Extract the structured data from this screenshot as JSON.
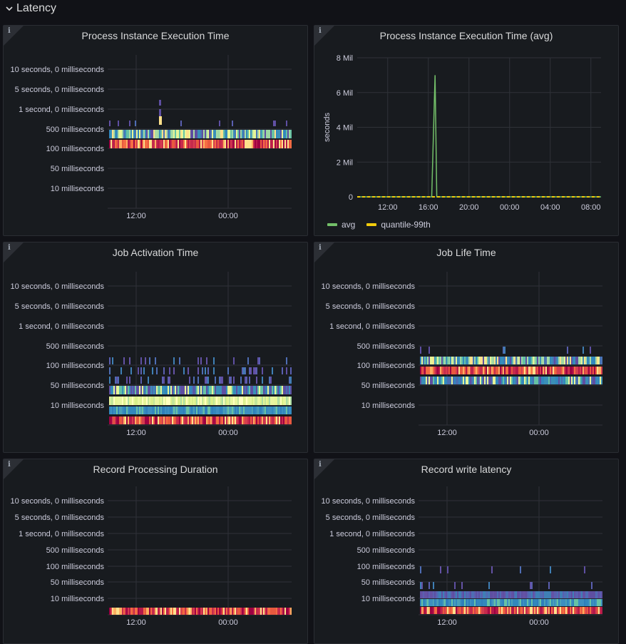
{
  "row": {
    "title": "Latency",
    "icon": "chevron-down-icon"
  },
  "colors": {
    "background": "#111217",
    "panel": "#181b1f",
    "grid": "#2f3238",
    "axis_text": "#ccccdc",
    "avg": "#73bf69",
    "quantile": "#f2cc0c"
  },
  "panels": [
    {
      "id": "process-instance-execution-time",
      "title": "Process Instance Execution Time",
      "info_icon": "i",
      "type": "heatmap",
      "y_labels": [
        "10 seconds, 0 milliseconds",
        "5 seconds, 0 milliseconds",
        "1 second, 0 milliseconds",
        "500 milliseconds",
        "100 milliseconds",
        "50 milliseconds",
        "10 milliseconds"
      ],
      "x_labels": [
        "12:00",
        "00:00"
      ]
    },
    {
      "id": "process-instance-execution-time-avg",
      "title": "Process Instance Execution Time (avg)",
      "info_icon": "i",
      "type": "line",
      "y_axis_label": "seconds",
      "y_labels": [
        "8 Mil",
        "6 Mil",
        "4 Mil",
        "2 Mil",
        "0"
      ],
      "x_labels": [
        "12:00",
        "16:00",
        "20:00",
        "00:00",
        "04:00",
        "08:00"
      ],
      "legend": [
        {
          "name": "avg",
          "color": "#73bf69"
        },
        {
          "name": "quantile-99th",
          "color": "#f2cc0c"
        }
      ]
    },
    {
      "id": "job-activation-time",
      "title": "Job Activation Time",
      "info_icon": "i",
      "type": "heatmap",
      "y_labels": [
        "10 seconds, 0 milliseconds",
        "5 seconds, 0 milliseconds",
        "1 second, 0 milliseconds",
        "500 milliseconds",
        "100 milliseconds",
        "50 milliseconds",
        "10 milliseconds"
      ],
      "x_labels": [
        "12:00",
        "00:00"
      ]
    },
    {
      "id": "job-life-time",
      "title": "Job Life Time",
      "info_icon": "i",
      "type": "heatmap",
      "y_labels": [
        "10 seconds, 0 milliseconds",
        "5 seconds, 0 milliseconds",
        "1 second, 0 milliseconds",
        "500 milliseconds",
        "100 milliseconds",
        "50 milliseconds",
        "10 milliseconds"
      ],
      "x_labels": [
        "12:00",
        "00:00"
      ]
    },
    {
      "id": "record-processing-duration",
      "title": "Record Processing Duration",
      "info_icon": "i",
      "type": "heatmap",
      "y_labels": [
        "10 seconds, 0 milliseconds",
        "5 seconds, 0 milliseconds",
        "1 second, 0 milliseconds",
        "500 milliseconds",
        "100 milliseconds",
        "50 milliseconds",
        "10 milliseconds"
      ],
      "x_labels": [
        "12:00",
        "00:00"
      ]
    },
    {
      "id": "record-write-latency",
      "title": "Record write latency",
      "info_icon": "i",
      "type": "heatmap",
      "y_labels": [
        "10 seconds, 0 milliseconds",
        "5 seconds, 0 milliseconds",
        "1 second, 0 milliseconds",
        "500 milliseconds",
        "100 milliseconds",
        "50 milliseconds",
        "10 milliseconds"
      ],
      "x_labels": [
        "12:00",
        "00:00"
      ]
    }
  ],
  "chart_data": [
    {
      "type": "heatmap",
      "title": "Process Instance Execution Time",
      "y_ticks": [
        "10 seconds, 0 milliseconds",
        "5 seconds, 0 milliseconds",
        "1 second, 0 milliseconds",
        "500 milliseconds",
        "100 milliseconds",
        "50 milliseconds",
        "10 milliseconds"
      ],
      "x_ticks": [
        "12:00",
        "00:00"
      ],
      "bands": [
        {
          "bucket_between": [
            "500 milliseconds",
            "1 second, 0 milliseconds"
          ],
          "density": "sparse",
          "palette": "cool"
        },
        {
          "bucket_between": [
            "100 milliseconds",
            "500 milliseconds"
          ],
          "density": "dense",
          "palette": "mixed"
        },
        {
          "bucket_between": [
            "100 milliseconds",
            "100 milliseconds"
          ],
          "density": "dense",
          "palette": "hot"
        }
      ]
    },
    {
      "type": "line",
      "title": "Process Instance Execution Time (avg)",
      "ylabel": "seconds",
      "ylim": [
        0,
        8000000
      ],
      "y_ticks": [
        "0",
        "2 Mil",
        "4 Mil",
        "6 Mil",
        "8 Mil"
      ],
      "x_ticks": [
        "12:00",
        "16:00",
        "20:00",
        "00:00",
        "04:00",
        "08:00"
      ],
      "grid": true,
      "legend_position": "bottom-left",
      "series": [
        {
          "name": "avg",
          "points": [
            [
              "09:00",
              0
            ],
            [
              "16:20",
              0
            ],
            [
              "16:40",
              7000000
            ],
            [
              "16:50",
              0
            ],
            [
              "09:00+1d",
              0
            ]
          ]
        },
        {
          "name": "quantile-99th",
          "points": [
            [
              "09:00",
              0
            ],
            [
              "09:00+1d",
              0
            ]
          ]
        }
      ]
    },
    {
      "type": "heatmap",
      "title": "Job Activation Time",
      "y_ticks": [
        "10 seconds, 0 milliseconds",
        "5 seconds, 0 milliseconds",
        "1 second, 0 milliseconds",
        "500 milliseconds",
        "100 milliseconds",
        "50 milliseconds",
        "10 milliseconds"
      ],
      "x_ticks": [
        "12:00",
        "00:00"
      ],
      "bands": [
        {
          "bucket_between": [
            "100 milliseconds",
            "500 milliseconds"
          ],
          "density": "sparse",
          "palette": "cool"
        },
        {
          "bucket_between": [
            "50 milliseconds",
            "100 milliseconds"
          ],
          "density": "medium",
          "palette": "cool"
        },
        {
          "bucket_between": [
            "10 milliseconds",
            "50 milliseconds"
          ],
          "density": "dense",
          "palette": "cool-yellow"
        },
        {
          "bucket_between": [
            "0",
            "10 milliseconds"
          ],
          "density": "dense",
          "palette": "hot"
        }
      ]
    },
    {
      "type": "heatmap",
      "title": "Job Life Time",
      "y_ticks": [
        "10 seconds, 0 milliseconds",
        "5 seconds, 0 milliseconds",
        "1 second, 0 milliseconds",
        "500 milliseconds",
        "100 milliseconds",
        "50 milliseconds",
        "10 milliseconds"
      ],
      "x_ticks": [
        "12:00",
        "00:00"
      ],
      "bands": [
        {
          "bucket_between": [
            "500 milliseconds",
            "500 milliseconds"
          ],
          "density": "sparse",
          "palette": "cool"
        },
        {
          "bucket_between": [
            "100 milliseconds",
            "500 milliseconds"
          ],
          "density": "dense",
          "palette": "mixed"
        },
        {
          "bucket_between": [
            "50 milliseconds",
            "100 milliseconds"
          ],
          "density": "dense",
          "palette": "hot"
        },
        {
          "bucket_between": [
            "50 milliseconds",
            "50 milliseconds"
          ],
          "density": "dense",
          "palette": "cool"
        }
      ]
    },
    {
      "type": "heatmap",
      "title": "Record Processing Duration",
      "y_ticks": [
        "10 seconds, 0 milliseconds",
        "5 seconds, 0 milliseconds",
        "1 second, 0 milliseconds",
        "500 milliseconds",
        "100 milliseconds",
        "50 milliseconds",
        "10 milliseconds"
      ],
      "x_ticks": [
        "12:00",
        "00:00"
      ],
      "bands": [
        {
          "bucket_between": [
            "0",
            "10 milliseconds"
          ],
          "density": "dense",
          "palette": "hot"
        }
      ]
    },
    {
      "type": "heatmap",
      "title": "Record write latency",
      "y_ticks": [
        "10 seconds, 0 milliseconds",
        "5 seconds, 0 milliseconds",
        "1 second, 0 milliseconds",
        "500 milliseconds",
        "100 milliseconds",
        "50 milliseconds",
        "10 milliseconds"
      ],
      "x_ticks": [
        "12:00",
        "00:00"
      ],
      "bands": [
        {
          "bucket_between": [
            "50 milliseconds",
            "100 milliseconds"
          ],
          "density": "sparse",
          "palette": "cool"
        },
        {
          "bucket_between": [
            "10 milliseconds",
            "10 milliseconds"
          ],
          "density": "dense",
          "palette": "cool"
        },
        {
          "bucket_between": [
            "0",
            "10 milliseconds"
          ],
          "density": "dense",
          "palette": "teal"
        },
        {
          "bucket_between": [
            "0",
            "0"
          ],
          "density": "dense",
          "palette": "hot"
        }
      ]
    }
  ]
}
